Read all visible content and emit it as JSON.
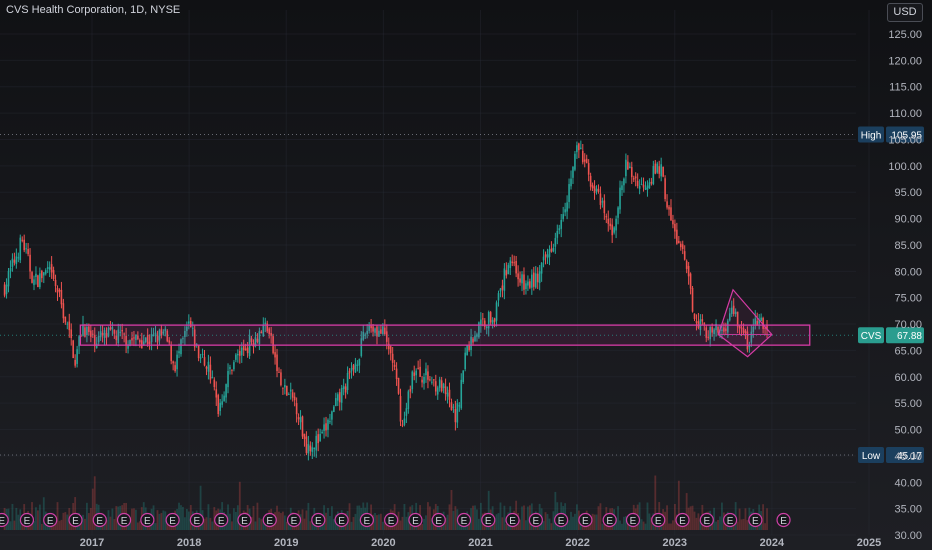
{
  "header": {
    "title": "CVS Health Corporation, 1D, NYSE",
    "currency_button": "USD"
  },
  "chart_data": {
    "type": "candlestick",
    "title": "CVS Health Corporation, 1D, NYSE",
    "ylim": [
      30,
      127
    ],
    "y_ticks": [
      30,
      35,
      40,
      45,
      50,
      55,
      60,
      65,
      70,
      75,
      80,
      85,
      90,
      95,
      100,
      105,
      110,
      115,
      120,
      125
    ],
    "x_ticks": [
      "2017",
      "2018",
      "2019",
      "2020",
      "2021",
      "2022",
      "2023",
      "2024",
      "2025"
    ],
    "x_tick_years": [
      2017,
      2018,
      2019,
      2020,
      2021,
      2022,
      2023,
      2024,
      2025
    ],
    "xlim": [
      2016.1,
      2025.25
    ],
    "approx_close_path": [
      [
        2016.1,
        77
      ],
      [
        2016.2,
        82
      ],
      [
        2016.28,
        86
      ],
      [
        2016.4,
        78
      ],
      [
        2016.55,
        80
      ],
      [
        2016.65,
        76
      ],
      [
        2016.78,
        67
      ],
      [
        2016.83,
        63
      ],
      [
        2016.9,
        70
      ],
      [
        2017.0,
        67
      ],
      [
        2017.2,
        68
      ],
      [
        2017.4,
        67
      ],
      [
        2017.6,
        67
      ],
      [
        2017.75,
        68
      ],
      [
        2017.85,
        62
      ],
      [
        2018.0,
        70
      ],
      [
        2018.1,
        64
      ],
      [
        2018.2,
        62
      ],
      [
        2018.3,
        54
      ],
      [
        2018.45,
        63
      ],
      [
        2018.6,
        66
      ],
      [
        2018.8,
        70
      ],
      [
        2018.95,
        58
      ],
      [
        2019.1,
        55
      ],
      [
        2019.2,
        47
      ],
      [
        2019.35,
        48
      ],
      [
        2019.55,
        56
      ],
      [
        2019.7,
        62
      ],
      [
        2019.85,
        70
      ],
      [
        2020.0,
        68
      ],
      [
        2020.1,
        63
      ],
      [
        2020.2,
        50
      ],
      [
        2020.3,
        61
      ],
      [
        2020.45,
        60
      ],
      [
        2020.6,
        58
      ],
      [
        2020.75,
        52
      ],
      [
        2020.85,
        65
      ],
      [
        2021.0,
        70
      ],
      [
        2021.15,
        72
      ],
      [
        2021.3,
        83
      ],
      [
        2021.45,
        77
      ],
      [
        2021.6,
        79
      ],
      [
        2021.75,
        86
      ],
      [
        2021.9,
        95
      ],
      [
        2022.0,
        104
      ],
      [
        2022.1,
        99
      ],
      [
        2022.25,
        92
      ],
      [
        2022.35,
        87
      ],
      [
        2022.5,
        100
      ],
      [
        2022.65,
        96
      ],
      [
        2022.75,
        98
      ],
      [
        2022.85,
        100
      ],
      [
        2022.95,
        90
      ],
      [
        2023.1,
        82
      ],
      [
        2023.2,
        72
      ],
      [
        2023.35,
        68
      ],
      [
        2023.5,
        69
      ],
      [
        2023.6,
        73
      ],
      [
        2023.75,
        66
      ],
      [
        2023.85,
        71
      ],
      [
        2023.95,
        68
      ]
    ],
    "annotations": {
      "high": {
        "label": "High",
        "value": "105.95",
        "y": 105.95
      },
      "low": {
        "label": "Low",
        "value": "45.17",
        "y": 45.17
      },
      "current": {
        "label": "CVS",
        "value": "67.88",
        "y": 67.88
      },
      "range_box": {
        "x_start": 2016.88,
        "x_end": 2024.39,
        "y_low": 66.0,
        "y_high": 69.8
      },
      "diamond": {
        "left": [
          2023.45,
          68.0
        ],
        "top": [
          2023.6,
          76.5
        ],
        "right": [
          2024.0,
          68.0
        ],
        "bottom": [
          2023.75,
          63.8
        ]
      }
    },
    "event_marker": "E",
    "event_years": [
      2016.07,
      2016.33,
      2016.57,
      2016.83,
      2017.08,
      2017.33,
      2017.57,
      2017.83,
      2018.08,
      2018.33,
      2018.57,
      2018.83,
      2019.08,
      2019.33,
      2019.57,
      2019.83,
      2020.08,
      2020.33,
      2020.57,
      2020.83,
      2021.08,
      2021.33,
      2021.57,
      2021.83,
      2022.08,
      2022.33,
      2022.57,
      2022.83,
      2023.08,
      2023.33,
      2023.57,
      2023.83,
      2024.12
    ],
    "colors": {
      "up": "#26a69a",
      "down": "#ef5350",
      "box": "#d63ba5",
      "label_bg": "#1b3f5e",
      "current_bg": "#2a9d8f",
      "grid": "#2a2e39",
      "event": "#ce3fa6"
    },
    "grid": true
  }
}
